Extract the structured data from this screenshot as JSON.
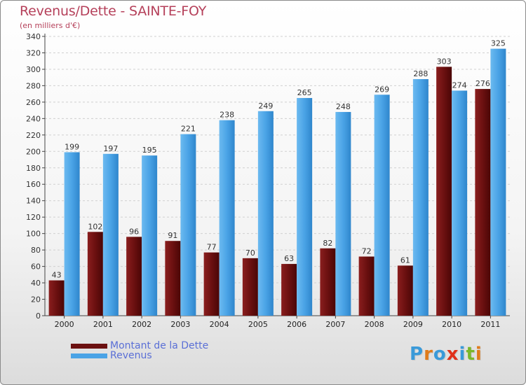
{
  "title": "Revenus/Dette - SAINTE-FOY",
  "subtitle": "(en milliers d'€)",
  "logo": {
    "text": "Proxiti",
    "letters": [
      "P",
      "r",
      "o",
      "x",
      "i",
      "t",
      "i"
    ],
    "colors": [
      "#3a9ad9",
      "#e07b1a",
      "#3a9ad9",
      "#e0301a",
      "#3a9ad9",
      "#7ab82a",
      "#e07b1a"
    ]
  },
  "colors": {
    "dette": "#6b1010",
    "revenus": "#4aa3e6",
    "title": "#b5405a",
    "legend_text": "#5a6fd6"
  },
  "chart_data": {
    "type": "bar",
    "categories": [
      "2000",
      "2001",
      "2002",
      "2003",
      "2004",
      "2005",
      "2006",
      "2007",
      "2008",
      "2009",
      "2010",
      "2011"
    ],
    "series": [
      {
        "name": "Montant de la Dette",
        "values": [
          43,
          102,
          96,
          91,
          77,
          70,
          63,
          82,
          72,
          61,
          303,
          276
        ]
      },
      {
        "name": "Revenus",
        "values": [
          199,
          197,
          195,
          221,
          238,
          249,
          265,
          248,
          269,
          288,
          274,
          325
        ]
      }
    ],
    "ylim": [
      0,
      340
    ],
    "yticks": [
      0,
      20,
      40,
      60,
      80,
      100,
      120,
      140,
      160,
      180,
      200,
      220,
      240,
      260,
      280,
      300,
      320,
      340
    ],
    "grid": true,
    "legend": "bottom-left"
  }
}
